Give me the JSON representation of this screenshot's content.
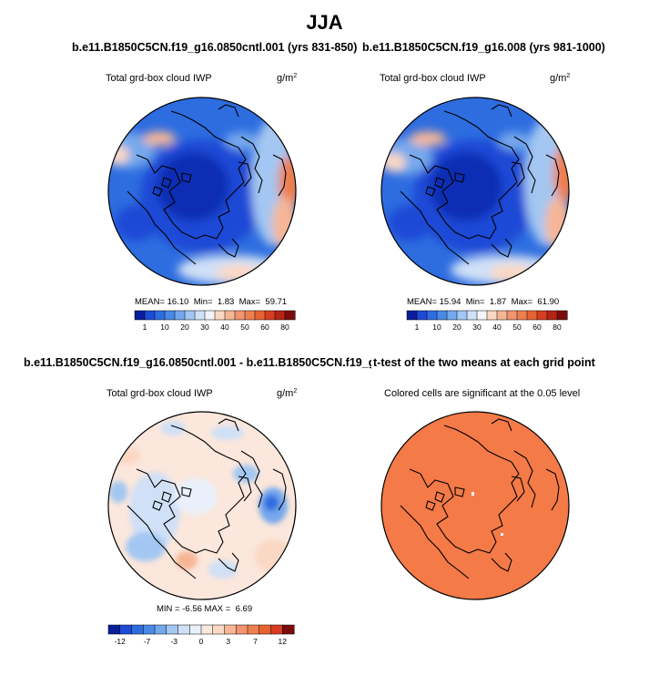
{
  "figure": {
    "title": "JJA"
  },
  "colors": {
    "seq": [
      "#0a1e9a",
      "#1e4ad6",
      "#2e6de0",
      "#4a89e6",
      "#74a8ec",
      "#a3c7f2",
      "#cfe0f7",
      "#f4f4f8",
      "#fbd8c4",
      "#f6b696",
      "#f19470",
      "#ee7f4e",
      "#e76331",
      "#d63d22",
      "#b42417",
      "#7c0d0d"
    ],
    "div": [
      "#0a1e9a",
      "#1e4ad6",
      "#2e6de0",
      "#4a89e6",
      "#74a8ec",
      "#a3c7f2",
      "#cfe0f7",
      "#e9f0fa",
      "#fbe7dc",
      "#fbd8c4",
      "#f6b696",
      "#f19470",
      "#ee7f4e",
      "#e76331",
      "#d63d22",
      "#7c0d0d"
    ],
    "sig": "#f47a47"
  },
  "panels": {
    "p1": {
      "title": "b.e11.B1850C5CN.f19_g16.0850cntl.001 (yrs 831-850)",
      "var": "Total grd-box cloud IWP",
      "unit": "g/m",
      "unit_exp": "2",
      "mean_label": "MEAN=",
      "mean": "16.10",
      "min_label": "Min=",
      "min": "1.83",
      "max_label": "Max=",
      "max": "59.71",
      "ticks": [
        "1",
        "10",
        "20",
        "30",
        "40",
        "50",
        "60",
        "80"
      ]
    },
    "p2": {
      "title": "b.e11.B1850C5CN.f19_g16.008 (yrs 981-1000)",
      "var": "Total grd-box cloud IWP",
      "unit": "g/m",
      "unit_exp": "2",
      "mean_label": "MEAN=",
      "mean": "15.94",
      "min_label": "Min=",
      "min": "1.87",
      "max_label": "Max=",
      "max": "61.90",
      "ticks": [
        "1",
        "10",
        "20",
        "30",
        "40",
        "50",
        "60",
        "80"
      ]
    },
    "p3": {
      "title": "b.e11.B1850C5CN.f19_g16.0850cntl.001 - b.e11.B1850C5CN.f19_g16.008",
      "var": "Total grd-box cloud IWP",
      "unit": "g/m",
      "unit_exp": "2",
      "min_label": "MIN =",
      "min": "-6.56",
      "max_label": "MAX =",
      "max": "6.69",
      "ticks": [
        "-12",
        "-7",
        "-3",
        "0",
        "3",
        "7",
        "12"
      ]
    },
    "p4": {
      "title": "t-test of the two means at each grid point",
      "subtitle": "Colored cells are significant at the 0.05 level"
    }
  },
  "chart_data": [
    {
      "type": "heatmap",
      "title": "b.e11.B1850C5CN.f19_g16.0850cntl.001 (yrs 831-850)",
      "subtitle": "Total grd-box cloud IWP",
      "units": "g/m2",
      "projection": "polar-stereographic-north",
      "colorbar_ticks": [
        1,
        10,
        20,
        30,
        40,
        50,
        60,
        80
      ],
      "stats": {
        "mean": 16.1,
        "min": 1.83,
        "max": 59.71
      }
    },
    {
      "type": "heatmap",
      "title": "b.e11.B1850C5CN.f19_g16.008 (yrs 981-1000)",
      "subtitle": "Total grd-box cloud IWP",
      "units": "g/m2",
      "projection": "polar-stereographic-north",
      "colorbar_ticks": [
        1,
        10,
        20,
        30,
        40,
        50,
        60,
        80
      ],
      "stats": {
        "mean": 15.94,
        "min": 1.87,
        "max": 61.9
      }
    },
    {
      "type": "heatmap",
      "title": "b.e11.B1850C5CN.f19_g16.0850cntl.001 - b.e11.B1850C5CN.f19_g16.008",
      "subtitle": "Total grd-box cloud IWP",
      "units": "g/m2",
      "projection": "polar-stereographic-north",
      "colorbar_ticks": [
        -12,
        -7,
        -3,
        0,
        3,
        7,
        12
      ],
      "stats": {
        "min": -6.56,
        "max": 6.69
      }
    },
    {
      "type": "heatmap",
      "title": "t-test of the two means at each grid point",
      "subtitle": "Colored cells are significant at the 0.05 level",
      "projection": "polar-stereographic-north",
      "significant_fraction_approx": 0.99
    }
  ]
}
